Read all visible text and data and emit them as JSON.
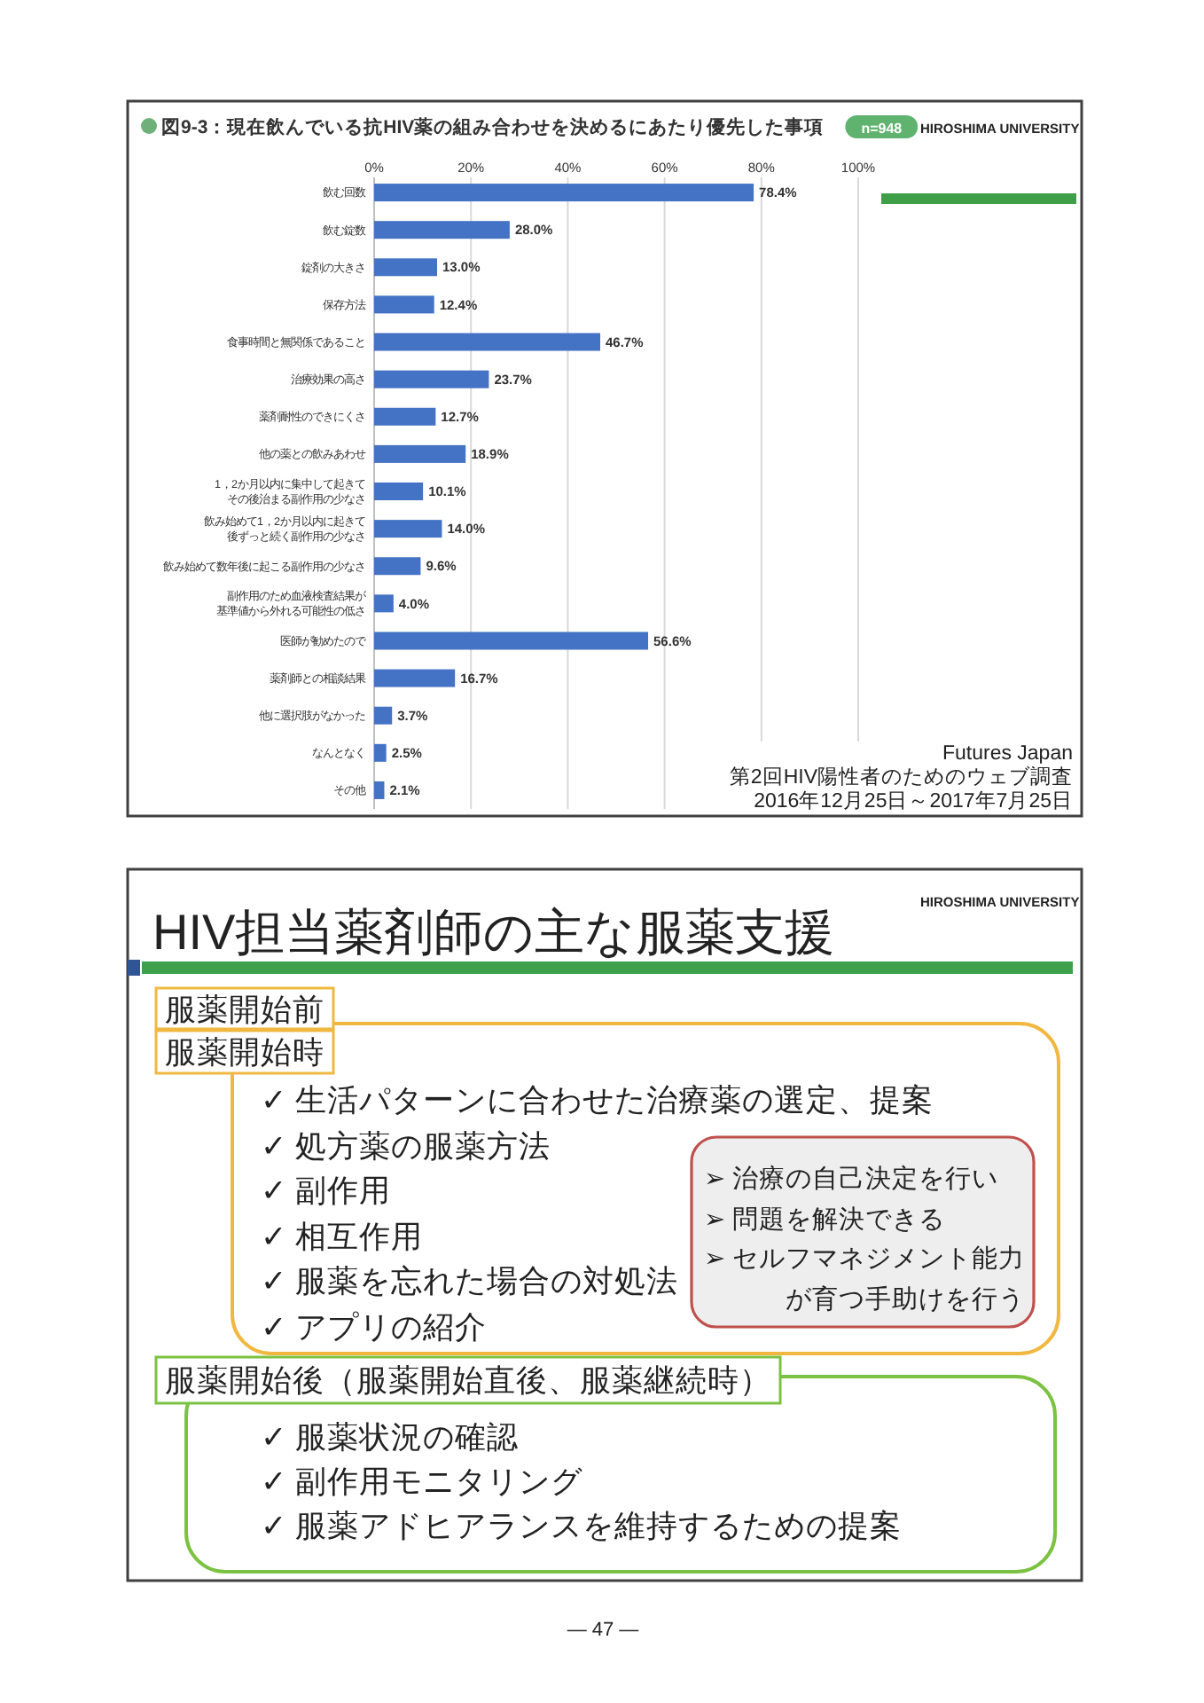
{
  "chart_data": [
    {
      "type": "bar",
      "orientation": "horizontal",
      "title": "図9-3：現在飲んでいる抗HIV薬の組み合わせを決めるにあたり優先した事項",
      "categories": [
        "飲む回数",
        "飲む錠数",
        "錠剤の大きさ",
        "保存方法",
        "食事時間と無関係であること",
        "治療効果の高さ",
        "薬剤耐性のできにくさ",
        "他の薬との飲みあわせ",
        "1，2か月以内に集中して起きてその後治まる副作用の少なさ",
        "飲み始めて1，2か月以内に起きて後ずっと続く副作用の少なさ",
        "飲み始めて数年後に起こる副作用の少なさ",
        "副作用のため血液検査結果が基準値から外れる可能性の低さ",
        "医師が勧めたので",
        "薬剤師との相談結果",
        "他に選択肢がなかった",
        "なんとなく",
        "その他"
      ],
      "values": [
        78.4,
        28.0,
        13.0,
        12.4,
        46.7,
        23.7,
        12.7,
        18.9,
        10.1,
        14.0,
        9.6,
        4.0,
        56.6,
        16.7,
        3.7,
        2.5,
        2.1
      ],
      "value_labels": [
        "78.4%",
        "28.0%",
        "13.0%",
        "12.4%",
        "46.7%",
        "23.7%",
        "12.7%",
        "18.9%",
        "10.1%",
        "14.0%",
        "9.6%",
        "4.0%",
        "56.6%",
        "16.7%",
        "3.7%",
        "2.5%",
        "2.1%"
      ],
      "color": "#4472c4",
      "xlim": [
        0,
        100
      ],
      "xticks": [
        {
          "value": 0,
          "label": "0%"
        },
        {
          "value": 20,
          "label": "20%"
        },
        {
          "value": 40,
          "label": "40%"
        },
        {
          "value": 60,
          "label": "60%"
        },
        {
          "value": 80,
          "label": "80%"
        },
        {
          "value": 100,
          "label": "100%"
        }
      ],
      "grid": "x",
      "annotations": [
        "n=948",
        "HIROSHIMA UNIVERSITY",
        "Futures Japan",
        "第2回HIV陽性者のためのウェブ調査",
        "2016年12月25日～2017年7月25日"
      ]
    },
    {
      "type": "other",
      "title": "HIV担当薬剤師の主な服薬支援",
      "annotations": [
        "HIROSHIMA UNIVERSITY",
        "服薬開始前",
        "服薬開始時",
        "✓ 生活パターンに合わせた治療薬の選定、提案",
        "✓ 処方薬の服薬方法",
        "✓ 副作用",
        "✓ 相互作用",
        "✓ 服薬を忘れた場合の対処法",
        "✓ アプリの紹介",
        "➢ 治療の自己決定を行い",
        "➢ 問題を解決できる",
        "➢ セルフマネジメント能力",
        "が育つ手助けを行う",
        "服薬開始後（服薬開始直後、服薬継続時）",
        "✓ 服薬状況の確認",
        "✓ 副作用モニタリング",
        "✓ 服薬アドヒアランスを維持するための提案",
        "— 47 —"
      ]
    }
  ]
}
